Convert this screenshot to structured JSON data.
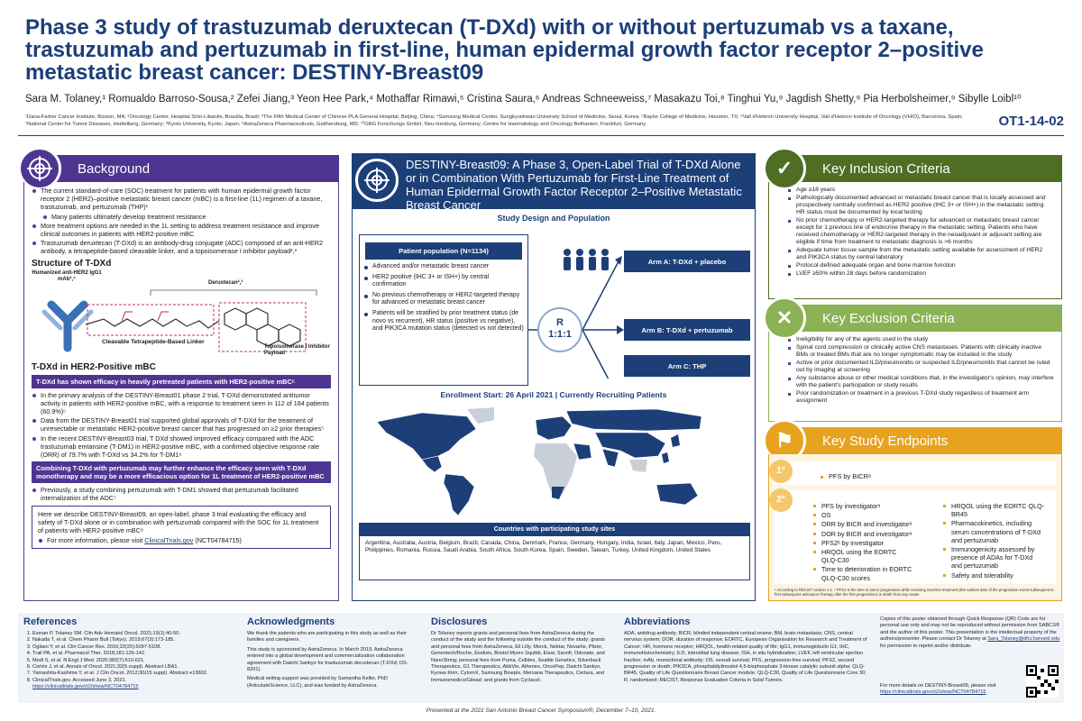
{
  "title": "Phase 3 study of trastuzumab deruxtecan (T-DXd) with or without pertuzumab vs a taxane, trastuzumab and pertuzumab in first-line, human epidermal growth factor receptor 2–positive metastatic breast cancer: DESTINY-Breast09",
  "authors": "Sara M. Tolaney,¹ Romualdo Barroso-Sousa,² Zefei Jiang,³ Yeon Hee Park,⁴ Mothaffar Rimawi,⁵ Cristina Saura,⁶ Andreas Schneeweiss,⁷ Masakazu Toi,⁸ Tinghui Yu,⁹ Jagdish Shetty,⁹ Pia Herbolsheimer,⁹ Sibylle Loibl¹⁰",
  "affiliations": "¹Dana-Farber Cancer Institute, Boston, MA; ²Oncology Center, Hospital Sírio-Libanês, Brasília, Brazil; ³The Fifth Medical Center of Chinese PLA General Hospital, Beijing, China; ⁴Samsung Medical Center, Sungkyunkwan University School of Medicine, Seoul, Korea; ⁵Baylor College of Medicine, Houston, TX; ⁶Vall d'Hebron University Hospital, Vall d'Hebron Institute of Oncology (VHIO), Barcelona, Spain; ⁷National Center for Tumor Diseases, Heidelberg, Germany; ⁸Kyoto University, Kyoto, Japan; ⁹AstraZeneca Pharmaceuticals, Gaithersburg, MD; ¹⁰GBG Forschungs GmbH, Neu-Isenburg, Germany; Centre for Haematology and Oncology Bethanien, Frankfurt, Germany",
  "poster_id": "OT1-14-02",
  "background": {
    "header": "Background",
    "bullets": [
      "The current standard-of-care (SOC) treatment for patients with human epidermal growth factor receptor 2 (HER2)–positive metastatic breast cancer (mBC) is a first-line (1L) regimen of a taxane, trastuzumab, and pertuzumab (THP)¹",
      "Many patients ultimately develop treatment resistance",
      "More treatment options are needed in the 1L setting to address treatment resistance and improve clinical outcomes in patients with HER2-positive mBC",
      "Trastuzumab deruxtecan (T-DXd) is an antibody-drug conjugate (ADC) composed of an anti-HER2 antibody, a tetrapeptide-based cleavable linker, and a topoisomerase I inhibitor payload²,³"
    ],
    "structure_title": "Structure of T-DXd",
    "structure_labels": {
      "antibody": "Humanized anti-HER2 IgG1 mAb²,⁴",
      "deruxtecan": "Deruxtecan²,³",
      "linker": "Cleavable Tetrapeptide-Based Linker",
      "payload": "Topoisomerase I Inhibitor Payload"
    },
    "her2_title": "T-DXd in HER2-Positive mBC",
    "bar1": "T-DXd has shown efficacy in heavily pretreated patients with HER2-positive mBC⁵",
    "bullets2": [
      "In the primary analysis of the DESTINY-Breast01 phase 2 trial, T-DXd demonstrated antitumor activity in patients with HER2-positive mBC, with a response to treatment seen in 112 of 184 patients (60.9%)⁵",
      "Data from the DESTINY-Breast01 trial supported global approvals of T-DXd for the treatment of unresectable or metastatic HER2-positive breast cancer that has progressed on ≥2 prior therapies⁵",
      "In the recent DESTINY-Breast03 trial, T DXd showed improved efficacy compared with the ADC trastuzumab emtansine (T-DM1) in HER2-positive mBC, with a confirmed objective response rate (ORR) of 79.7% with T-DXd vs 34.2% for T-DM1⁶"
    ],
    "bar2": "Combining T-DXd with pertuzumab may further enhance the efficacy seen with T-DXd monotherapy and may be a more efficacious option for 1L treatment of HER2-positive mBC",
    "bullets3": [
      "Previously, a study combining pertuzumab with T-DM1 showed that pertuzumab facilitated internalization of the ADC⁷"
    ],
    "box_text": "Here we describe DESTINY-Breast09, an open-label, phase 3 trial evaluating the efficacy and safety of T-DXd alone or in combination with pertuzumab compared with the SOC for 1L treatment of patients with HER2-positive mBC⁸",
    "more_info_prefix": "For more information, please visit ",
    "more_info_link": "ClinicalTrials.gov",
    "more_info_suffix": " (NCT04784715)"
  },
  "trial": {
    "header": "DESTINY-Breast09: A Phase 3, Open-Label Trial of T-DXd Alone or in Combination With Pertuzumab for First-Line Treatment of Human Epidermal Growth Factor Receptor 2–Positive Metastatic Breast Cancer",
    "design_title": "Study Design and Population",
    "population_title": "Patient population (N=1134)",
    "population_bullets": [
      "Advanced and/or metastatic breast cancer",
      "HER2 positive (IHC 3+ or ISH+) by central confirmation",
      "No previous chemotherapy or HER2-targeted therapy for advanced or metastatic breast cancer",
      "Patients will be stratified by prior treatment status (de novo vs recurrent), HR status (positive vs negative), and PIK3CA mutation status (detected vs not detected)"
    ],
    "randomization": "R",
    "ratio": "1:1:1",
    "arms": [
      "Arm A: T-DXd + placebo",
      "Arm B: T-DXd + pertuzumab",
      "Arm C: THP"
    ],
    "enrollment": "Enrollment Start: 26 April 2021 | Currently Recruiting Patients",
    "countries_title": "Countries with participating study sites",
    "countries": "Argentina, Australia, Austria, Belgium, Brazil, Canada, China, Denmark, France, Germany, Hungary, India, Israel, Italy, Japan, Mexico, Peru, Philippines, Romania, Russia, Saudi Arabia, South Africa, South Korea, Spain, Sweden, Taiwan, Turkey, United Kingdom, United States"
  },
  "inclusion": {
    "header": "Key Inclusion Criteria",
    "items": [
      "Age ≥18 years",
      "Pathologically documented advanced or metastatic breast cancer that is locally assessed and prospectively centrally confirmed as HER2 positive (IHC 3+ or ISH+) in the metastatic setting. HR status must be documented by local testing",
      "No prior chemotherapy or HER2-targeted therapy for advanced or metastatic breast cancer except for 1 previous line of endocrine therapy in the metastatic setting. Patients who have received chemotherapy or HER2-targeted therapy in the neoadjuvant or adjuvant setting are eligible if time from treatment to metastatic diagnosis is >6 months",
      "Adequate tumor tissue sample from the metastatic setting available for assessment of HER2 and PIK3CA status by central laboratory",
      "Protocol-defined adequate organ and bone marrow function",
      "LVEF ≥50% within 28 days before randomization"
    ]
  },
  "exclusion": {
    "header": "Key Exclusion Criteria",
    "items": [
      "Ineligibility for any of the agents used in the study",
      "Spinal cord compression or clinically active CNS metastases. Patients with clinically inactive BMs or treated BMs that are no longer symptomatic may be included in the study",
      "Active or prior documented ILD/pneumonitis or suspected ILD/pneumonitis that cannot be ruled out by imaging at screening",
      "Any substance abuse or other medical conditions that, in the investigator's opinion, may interfere with the patient's participation or study results",
      "Prior randomization or treatment in a previous T-DXd study regardless of treatment arm assignment"
    ]
  },
  "endpoints": {
    "header": "Key Study Endpoints",
    "primary_badge": "1°",
    "primary": [
      "PFS by BICRᵃ"
    ],
    "secondary_badge": "2°",
    "secondary_left": [
      "PFS by investigatorᵃ",
      "OS",
      "ORR by BICR and investigatorᵃ",
      "DOR by BICR and investigatorᵃ",
      "PFS2ᵇ by investigator",
      "HRQOL using the EORTC QLQ-C30",
      "Time to deterioration in EORTC QLQ-C30 scores"
    ],
    "secondary_right": [
      "HRQOL using the EORTC QLQ-BR45",
      "Pharmacokinetics, including serum concentrations of T-DXd and pertuzumab",
      "Immunogenicity assessed by presence of ADAs for T-DXd and pertuzumab",
      "Safety and tolerability"
    ],
    "footnote": "ᵃ According to RECIST version 1.1. ᵇ PFS2 is the time to tumor progression while receiving next-line treatment (the earliest date of the progression event subsequent to first subsequent anticancer therapy after the first progression) or death from any cause."
  },
  "footer": {
    "references_title": "References",
    "references": [
      "Exman P, Tolaney SM. Clin Adv Hematol Oncol. 2021;19(1):40-50.",
      "Nakada T, et al. Chem Pharm Bull (Tokyo). 2019;67(3):173-185.",
      "Ogitani Y, et al. Clin Cancer Res. 2016;22(20):5097-5108.",
      "Trail PA, et al. Pharmacol Ther. 2018;181:126-142.",
      "Modi S, et al. N Engl J Med. 2020;382(7):610-621.",
      "Cortés J, et al. Annals of Oncol. 2021;32(5 suppl). Abstract LBA1.",
      "Yamashita-Kashima Y, et al. J Clin Oncol. 2012;30(15 suppl). Abstract e13602.",
      "ClinicalTrials.gov. Accessed June 3, 2021."
    ],
    "ref_link": "https://clinicaltrials.gov/ct2/show/NCT04784715",
    "ack_title": "Acknowledgments",
    "ack_text": [
      "We thank the patients who are participating in this study as well as their families and caregivers.",
      "This study is sponsored by AstraZeneca. In March 2019, AstraZeneca entered into a global development and commercialization collaboration agreement with Daiichi Sankyo for trastuzumab deruxtecan (T-DXd; DS-8201).",
      "Medical writing support was provided by Samantha Keller, PhD (ArticulateScience, LLC), and was funded by AstraZeneca."
    ],
    "disc_title": "Disclosures",
    "disc_text": "Dr Tolaney reports grants and personal fees from AstraZeneca during the conduct of the study and the following outside the conduct of the study: grants and personal fees from AstraZeneca, Eli Lilly, Merck, Nektar, Novartis, Pfizer, Genentech/Roche, Exelixis, Bristol Myers Squibb, Eisai, Sanofi, Odonate, and NanoString; personal fees from Puma, Celldex, Seattle Genetics, Silverback Therapeutics, G1 Therapeutics, AbbVie, Athenex, OncoPep, Daiichi Sankyo, Kyowa Kirin, CytomX, Samsung Bioepis, Mersana Therapeutics, Certara, and Immunomedics/Gilead; and grants from Cyclacel.",
    "abbr_title": "Abbreviations",
    "abbr_text": "ADA, antidrug antibody; BICR, blinded independent central review; BM, brain metastasis; CNS, central nervous system; DOR, duration of response; EORTC, European Organisation for Research and Treatment of Cancer; HR, hormone receptor; HRQOL, health-related quality of life; IgG1, immunoglobulin G1; IHC, immunohistochemistry; ILD, interstitial lung disease; ISH, in situ hybridization; LVEF, left ventricular ejection fraction; mAb, monoclonal antibody; OS, overall survival; PFS, progression-free survival; PFS2, second progression or death; PIK3CA, phosphatidylinositol 4,5-bisphosphate 3-kinase catalytic subunit alpha; QLQ-BR45, Quality of Life Questionnaire Breast Cancer module; QLQ-C30, Quality of Life Questionnaire Core 30; R, randomized; RECIST, Response Evaluation Criteria in Solid Tumors.",
    "copies_text": "Copies of this poster obtained through Quick Response (QR) Code are for personal use only and may not be reproduced without permission from SABCS® and the author of this poster. This presentation is the intellectual property of the authors/presenter. Please contact Dr Tolaney at",
    "email": "Sara_Tolaney@dfci.harvard.edu",
    "copies_suffix": "for permission to reprint and/or distribute.",
    "more_details": "For more details on DESTINY-Breast09, please visit",
    "more_link": "https://clinicaltrials.gov/ct2/show/NCT04784715"
  },
  "presented": "Presented at the 2021 San Antonio Breast Cancer Symposium®, December 7–10, 2021.",
  "colors": {
    "navy": "#1c3f78",
    "purple": "#4e3592",
    "green": "#4e6e23",
    "gold": "#e7a320"
  }
}
